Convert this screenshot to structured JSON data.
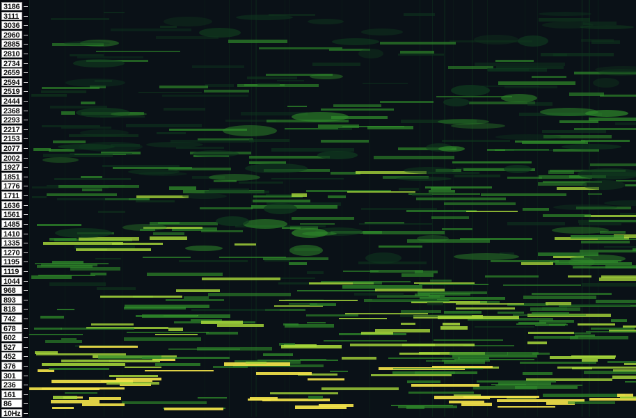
{
  "app": {
    "title": ""
  },
  "frequency_axis": {
    "unit_label": "10Hz",
    "ticks": [
      "3186",
      "3111",
      "3036",
      "2960",
      "2885",
      "2810",
      "2734",
      "2659",
      "2594",
      "2519",
      "2444",
      "2368",
      "2293",
      "2217",
      "2153",
      "2077",
      "2002",
      "1927",
      "1851",
      "1776",
      "1711",
      "1636",
      "1561",
      "1485",
      "1410",
      "1335",
      "1270",
      "1195",
      "1119",
      "1044",
      "968",
      "893",
      "818",
      "742",
      "678",
      "602",
      "527",
      "452",
      "376",
      "301",
      "236",
      "161",
      "86",
      "10Hz"
    ]
  },
  "colors": {
    "background": "#0a1117",
    "low": "#0f3a1e",
    "mid": "#2f8a2a",
    "high": "#a7d83a",
    "peak": "#f2e24a"
  }
}
